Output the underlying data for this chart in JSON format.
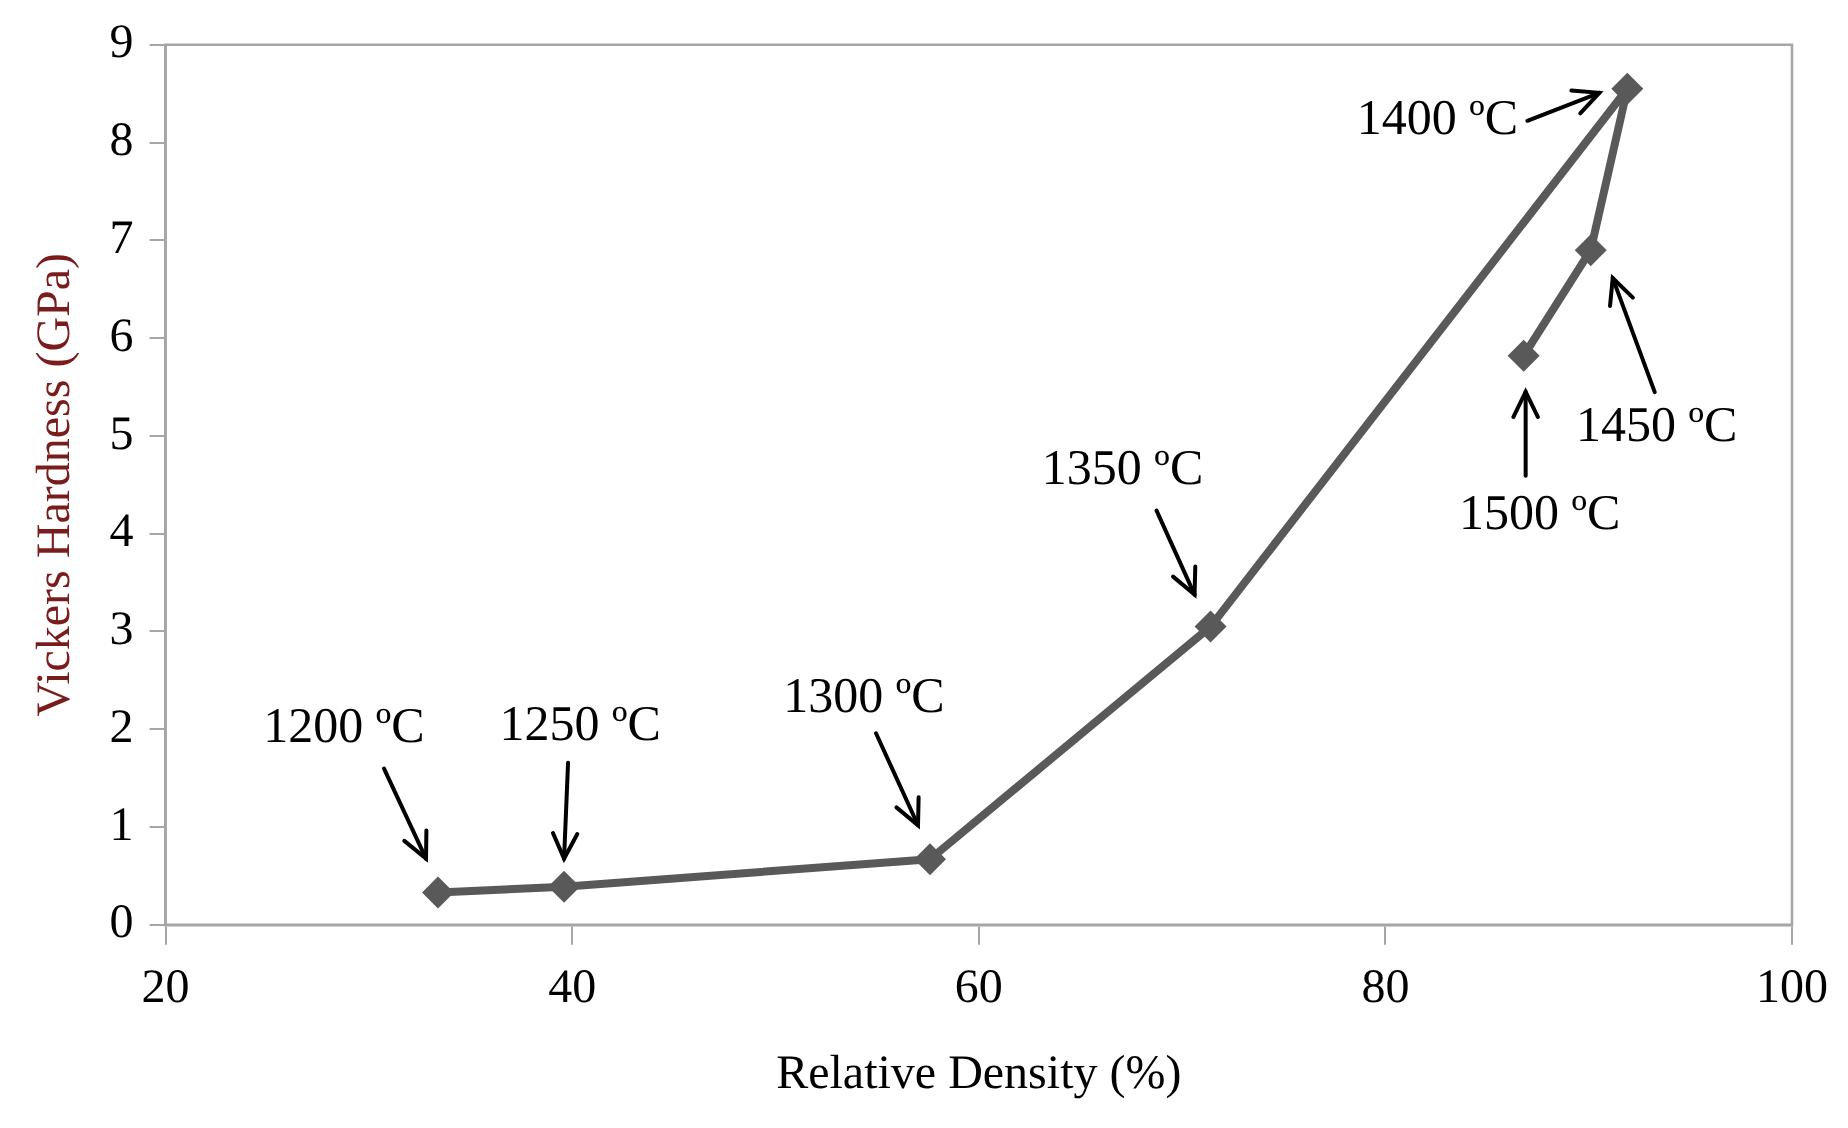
{
  "chart_data": {
    "type": "line",
    "xlabel": "Relative Density (%)",
    "ylabel": "Vickers Hardness (GPa)",
    "x": [
      33.4,
      39.6,
      57.6,
      71.4,
      91.9,
      90.1,
      86.8
    ],
    "series": [
      {
        "color": "#595959",
        "values": [
          0.33,
          0.39,
          0.67,
          3.05,
          8.55,
          6.9,
          5.82
        ]
      }
    ],
    "xlim": [
      20,
      100
    ],
    "xticks": [
      20,
      40,
      60,
      80,
      100
    ],
    "ylim": [
      0,
      9
    ],
    "yticks": [
      0,
      1,
      2,
      3,
      4,
      5,
      6,
      7,
      8,
      9
    ],
    "grid": false,
    "legend": false,
    "marker": "diamond",
    "line_style": "solid",
    "annotations": [
      {
        "text": "1200 ºC",
        "x": 33.4,
        "y": 0.33
      },
      {
        "text": "1250 ºC",
        "x": 39.6,
        "y": 0.39
      },
      {
        "text": "1300 ºC",
        "x": 57.6,
        "y": 0.67
      },
      {
        "text": "1350 ºC",
        "x": 71.4,
        "y": 3.05
      },
      {
        "text": "1400 ºC",
        "x": 91.9,
        "y": 8.55
      },
      {
        "text": "1450 ºC",
        "x": 90.1,
        "y": 6.9
      },
      {
        "text": "1500 ºC",
        "x": 86.8,
        "y": 5.82
      }
    ]
  }
}
